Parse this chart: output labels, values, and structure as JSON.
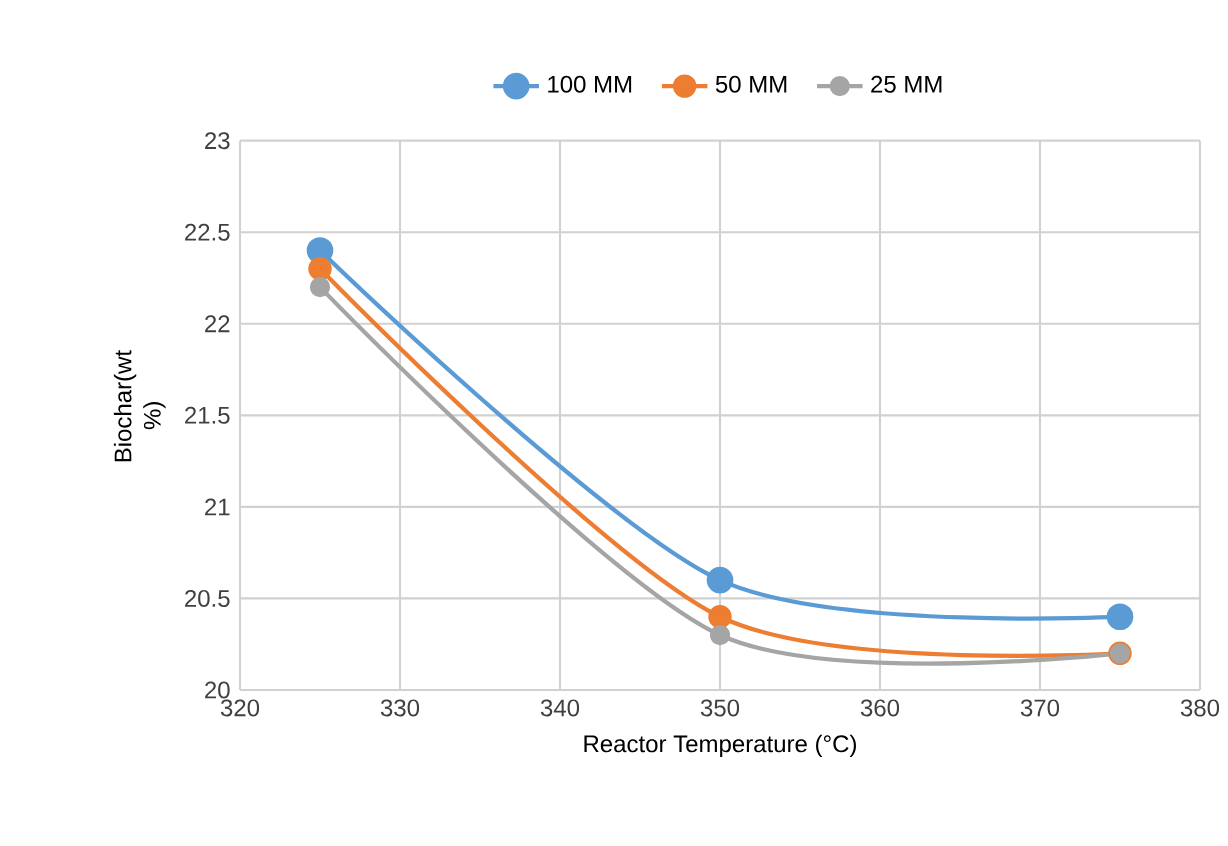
{
  "chart_data": {
    "type": "line",
    "xlabel": "Reactor Temperature (°C)",
    "ylabel": "Biochar(wt %)",
    "x": [
      325,
      350,
      375
    ],
    "series": [
      {
        "name": "100 MM",
        "color": "#5b9bd5",
        "values": [
          22.4,
          20.6,
          20.4
        ]
      },
      {
        "name": "50 MM",
        "color": "#ed7d31",
        "values": [
          22.3,
          20.4,
          20.2
        ]
      },
      {
        "name": "25 MM",
        "color": "#a5a5a5",
        "values": [
          22.2,
          20.3,
          20.2
        ]
      }
    ],
    "xlim": [
      320,
      380
    ],
    "xticks": [
      320,
      330,
      340,
      350,
      360,
      370,
      380
    ],
    "ylim": [
      20,
      23
    ],
    "yticks": [
      20,
      20.5,
      21,
      21.5,
      22,
      22.5,
      23
    ],
    "grid": true,
    "legend": "top",
    "marker": "circle",
    "line_style": "solid"
  }
}
